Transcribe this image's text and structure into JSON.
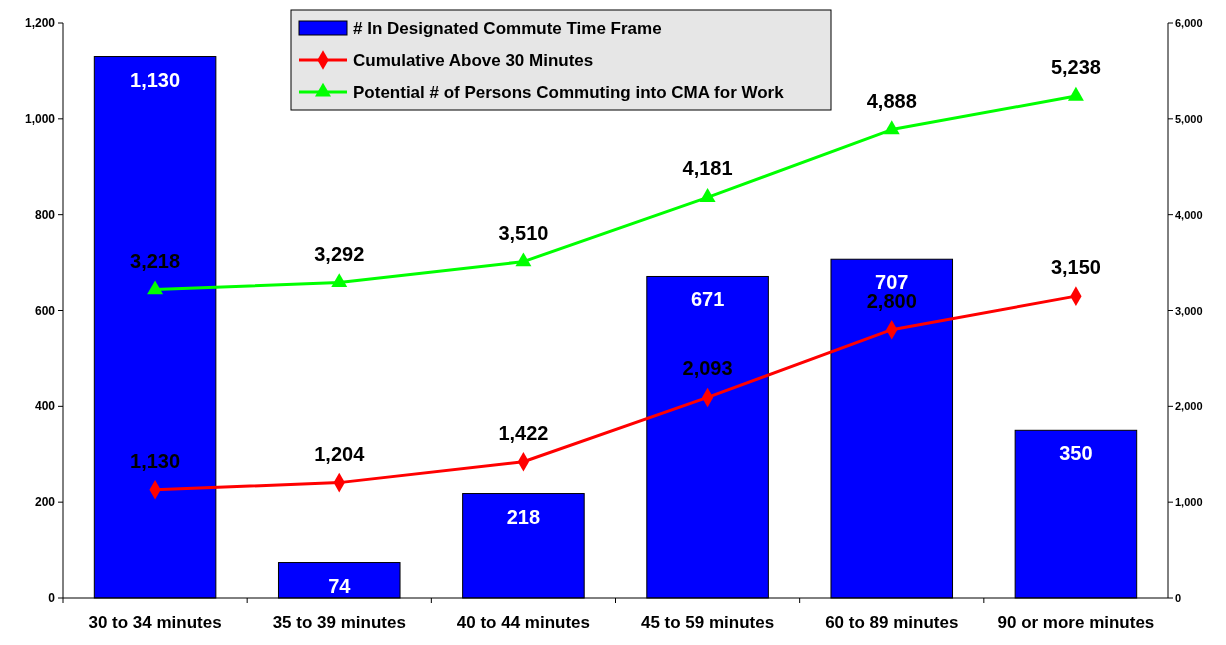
{
  "chart_data": {
    "type": "bar",
    "categories": [
      "30 to 34 minutes",
      "35 to 39 minutes",
      "40 to 44 minutes",
      "45 to 59 minutes",
      "60 to 89 minutes",
      "90 or more minutes"
    ],
    "series": [
      {
        "name": "# In Designated Commute Time Frame",
        "color": "#0000ff",
        "values": [
          1130,
          74,
          218,
          671,
          707,
          350
        ],
        "value_labels": [
          "1,130",
          "74",
          "218",
          "671",
          "707",
          "350"
        ]
      },
      {
        "name": "Cumulative Above 30 Minutes",
        "type": "line",
        "axis": "y2",
        "color": "#ff0000",
        "marker": "diamond",
        "values": [
          1130,
          1204,
          1422,
          2093,
          2800,
          3150
        ],
        "value_labels": [
          "1,130",
          "1,204",
          "1,422",
          "2,093",
          "2,800",
          "3,150"
        ]
      },
      {
        "name": "Potential # of Persons Commuting into CMA for Work",
        "type": "line",
        "axis": "y2",
        "color": "#00ff00",
        "marker": "triangle",
        "values": [
          3218,
          3292,
          3510,
          4181,
          4888,
          5238
        ],
        "value_labels": [
          "3,218",
          "3,292",
          "3,510",
          "4,181",
          "4,888",
          "5,238"
        ]
      }
    ],
    "ylim": [
      0,
      1200
    ],
    "yticks": [
      0,
      {
        "value": 200,
        "label": "200"
      },
      {
        "value": 400,
        "label": "400"
      },
      {
        "value": 600,
        "label": "600"
      },
      {
        "value": 800,
        "label": "800"
      },
      {
        "value": 1000,
        "label": "1,000"
      },
      {
        "value": 1200,
        "label": "1,200"
      }
    ],
    "y2lim": [
      0,
      6000
    ],
    "y2ticks": [
      0,
      {
        "value": 1000,
        "label": "1,000"
      },
      {
        "value": 2000,
        "label": "2,000"
      },
      {
        "value": 3000,
        "label": "3,000"
      },
      {
        "value": 4000,
        "label": "4,000"
      },
      {
        "value": 5000,
        "label": "5,000"
      },
      {
        "value": 6000,
        "label": "6,000"
      }
    ],
    "legend": "top",
    "grid": false
  }
}
